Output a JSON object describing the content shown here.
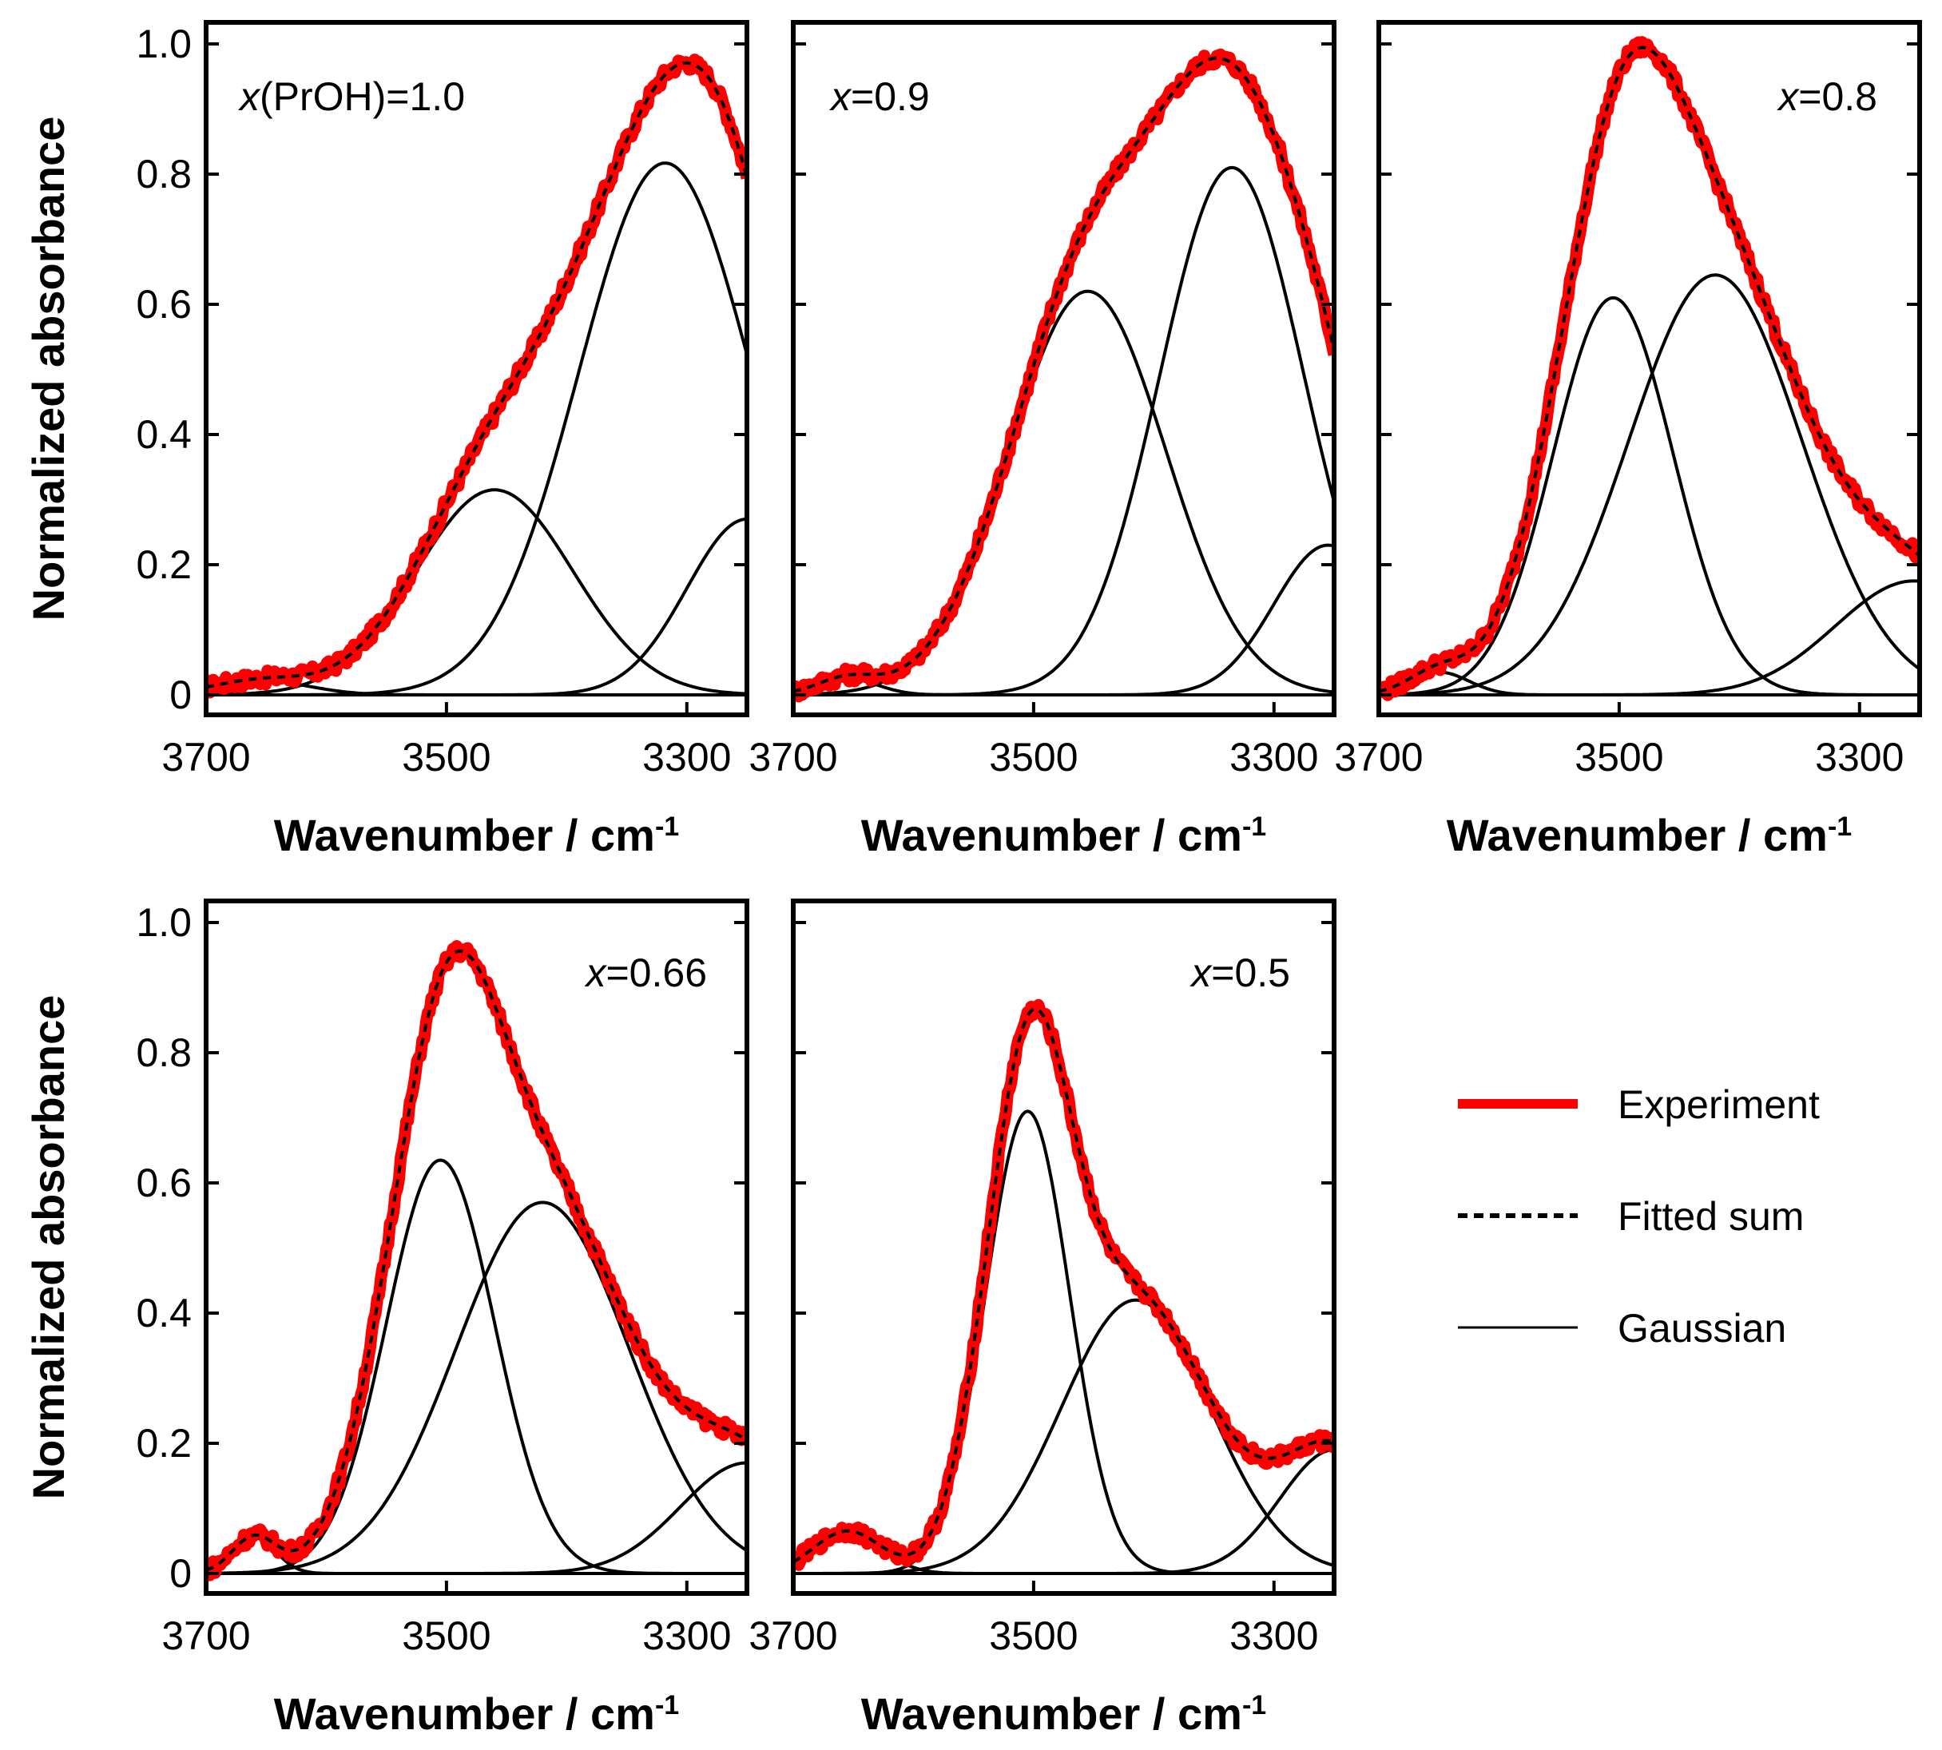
{
  "chart_data": [
    {
      "type": "line",
      "panel": "x(PrOH)=1.0",
      "annotation": {
        "italic": "x",
        "rest": "(PrOH)=1.0"
      },
      "xlabel": "Wavenumber / cm",
      "xlabel_sup": "-1",
      "ylabel": "Normalized absorbance",
      "xlim": [
        3700,
        3250
      ],
      "ylim": [
        0,
        1.0
      ],
      "xticks": [
        3700,
        3500,
        3300
      ],
      "yticks": [
        0,
        0.2,
        0.4,
        0.6,
        0.8,
        1.0
      ],
      "ytick_labels": [
        "0",
        "0.2",
        "0.4",
        "0.6",
        "0.8",
        "1.0"
      ],
      "gaussians": [
        {
          "center": 3655,
          "amplitude": 0.022,
          "sigma": 40
        },
        {
          "center": 3460,
          "amplitude": 0.315,
          "sigma": 65
        },
        {
          "center": 3318,
          "amplitude": 0.817,
          "sigma": 72
        },
        {
          "center": 3250,
          "amplitude": 0.27,
          "sigma": 50
        }
      ]
    },
    {
      "type": "line",
      "panel": "x=0.9",
      "annotation": {
        "italic": "x",
        "rest": "=0.9"
      },
      "xlabel": "Wavenumber / cm",
      "xlabel_sup": "-1",
      "ylabel": "",
      "xlim": [
        3700,
        3250
      ],
      "ylim": [
        0,
        1.0
      ],
      "xticks": [
        3700,
        3500,
        3300
      ],
      "yticks": [
        0,
        0.2,
        0.4,
        0.6,
        0.8,
        1.0
      ],
      "ytick_labels": [],
      "gaussians": [
        {
          "center": 3655,
          "amplitude": 0.025,
          "sigma": 25
        },
        {
          "center": 3455,
          "amplitude": 0.62,
          "sigma": 65
        },
        {
          "center": 3335,
          "amplitude": 0.81,
          "sigma": 60
        },
        {
          "center": 3255,
          "amplitude": 0.23,
          "sigma": 45
        }
      ]
    },
    {
      "type": "line",
      "panel": "x=0.8",
      "annotation": {
        "italic": "x",
        "rest": "=0.8"
      },
      "xlabel": "Wavenumber / cm",
      "xlabel_sup": "-1",
      "ylabel": "",
      "xlim": [
        3700,
        3250
      ],
      "ylim": [
        0,
        1.0
      ],
      "xticks": [
        3700,
        3500,
        3300
      ],
      "yticks": [
        0,
        0.2,
        0.4,
        0.6,
        0.8,
        1.0
      ],
      "ytick_labels": [],
      "gaussians": [
        {
          "center": 3650,
          "amplitude": 0.035,
          "sigma": 25
        },
        {
          "center": 3505,
          "amplitude": 0.61,
          "sigma": 50
        },
        {
          "center": 3420,
          "amplitude": 0.645,
          "sigma": 72
        },
        {
          "center": 3255,
          "amplitude": 0.175,
          "sigma": 65
        }
      ]
    },
    {
      "type": "line",
      "panel": "x=0.66",
      "annotation": {
        "italic": "x",
        "rest": "=0.66"
      },
      "xlabel": "Wavenumber / cm",
      "xlabel_sup": "-1",
      "ylabel": "Normalized absorbance",
      "xlim": [
        3700,
        3250
      ],
      "ylim": [
        0,
        1.0
      ],
      "xticks": [
        3700,
        3500,
        3300
      ],
      "yticks": [
        0,
        0.2,
        0.4,
        0.6,
        0.8,
        1.0
      ],
      "ytick_labels": [
        "0",
        "0.2",
        "0.4",
        "0.6",
        "0.8",
        "1.0"
      ],
      "gaussians": [
        {
          "center": 3660,
          "amplitude": 0.055,
          "sigma": 18
        },
        {
          "center": 3505,
          "amplitude": 0.635,
          "sigma": 45
        },
        {
          "center": 3420,
          "amplitude": 0.57,
          "sigma": 72
        },
        {
          "center": 3250,
          "amplitude": 0.17,
          "sigma": 55
        }
      ]
    },
    {
      "type": "line",
      "panel": "x=0.5",
      "annotation": {
        "italic": "x",
        "rest": "=0.5"
      },
      "xlabel": "Wavenumber / cm",
      "xlabel_sup": "-1",
      "ylabel": "",
      "xlim": [
        3700,
        3250
      ],
      "ylim": [
        0,
        1.0
      ],
      "xticks": [
        3700,
        3500,
        3300
      ],
      "yticks": [
        0,
        0.2,
        0.4,
        0.6,
        0.8,
        1.0
      ],
      "ytick_labels": [],
      "gaussians": [
        {
          "center": 3655,
          "amplitude": 0.065,
          "sigma": 28
        },
        {
          "center": 3505,
          "amplitude": 0.71,
          "sigma": 35
        },
        {
          "center": 3415,
          "amplitude": 0.42,
          "sigma": 62
        },
        {
          "center": 3250,
          "amplitude": 0.19,
          "sigma": 45
        }
      ]
    }
  ],
  "legend": {
    "placement": "right-middle",
    "items": [
      {
        "label": "Experiment",
        "style": "thick-solid",
        "color": "#ff0000"
      },
      {
        "label": "Fitted sum",
        "style": "dashed",
        "color": "#000000"
      },
      {
        "label": "Gaussian",
        "style": "thin-solid",
        "color": "#000000"
      }
    ]
  }
}
